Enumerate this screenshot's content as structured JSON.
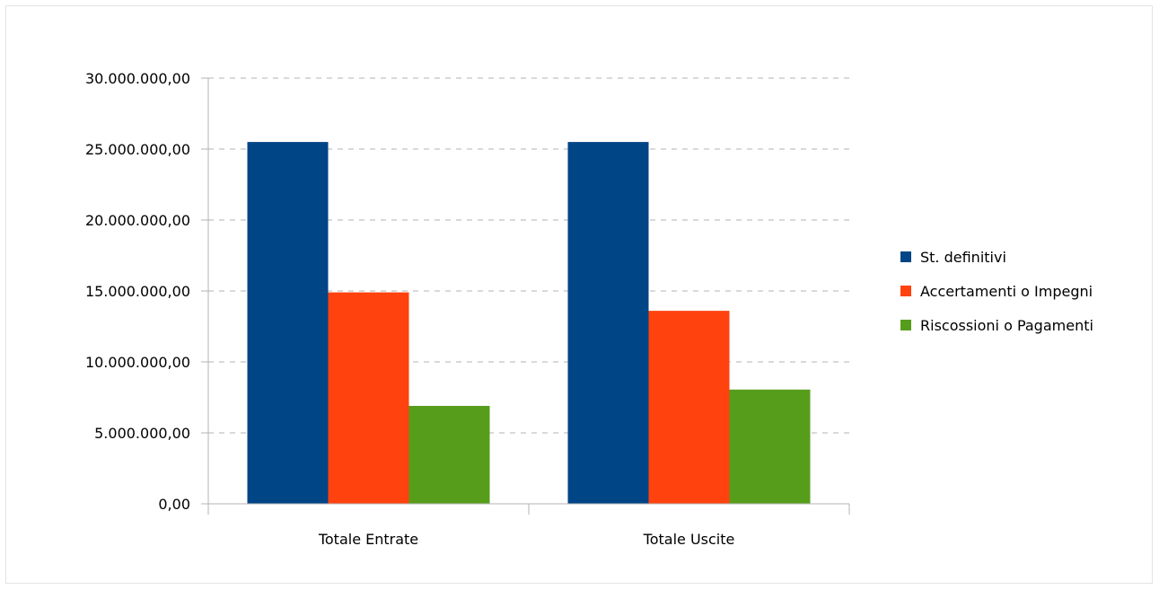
{
  "chart_data": {
    "type": "bar",
    "title": "",
    "xlabel": "",
    "ylabel": "",
    "categories": [
      "Totale Entrate",
      "Totale Uscite"
    ],
    "series": [
      {
        "name": "St. definitivi",
        "color": "#004586",
        "values": [
          25500000,
          25500000
        ]
      },
      {
        "name": "Accertamenti o Impegni",
        "color": "#ff420e",
        "values": [
          14900000,
          13600000
        ]
      },
      {
        "name": "Riscossioni o Pagamenti",
        "color": "#579d1c",
        "values": [
          6900000,
          8050000
        ]
      }
    ],
    "ylim": [
      0,
      30000000
    ],
    "yticks": [
      0,
      5000000,
      10000000,
      15000000,
      20000000,
      25000000,
      30000000
    ],
    "ytick_labels": [
      "0,00",
      "5.000.000,00",
      "10.000.000,00",
      "15.000.000,00",
      "20.000.000,00",
      "25.000.000,00",
      "30.000.000,00"
    ],
    "grid": true,
    "legend_position": "right"
  }
}
